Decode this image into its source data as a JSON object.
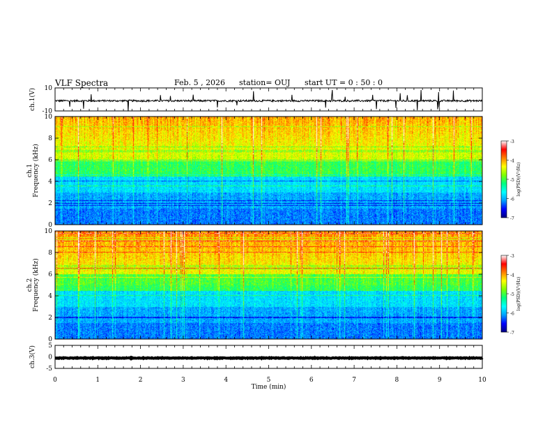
{
  "header": {
    "title": "VLF Spectra",
    "date": "Feb. 5 , 2026",
    "station": "station= OUJ",
    "start": "start  UT =   0 : 50 : 0"
  },
  "chart_data": {
    "type": "heatmap",
    "xlabel": "Time (min)",
    "xlim": [
      0,
      10
    ],
    "xticks": [
      "0",
      "1",
      "2",
      "3",
      "4",
      "5",
      "6",
      "7",
      "8",
      "9",
      "10"
    ],
    "panels": [
      {
        "id": "ch1-waveform",
        "kind": "line",
        "ylabel": "ch.1(V)",
        "ylim": [
          -10,
          10
        ],
        "yticks": [
          "10",
          "-10"
        ],
        "baseline": -1.2,
        "color": "#000000"
      },
      {
        "id": "ch1-spectrogram",
        "kind": "spectrogram",
        "ylabel": "ch.1\nFrequency (kHz)",
        "ylim": [
          0,
          10
        ],
        "yticks": [
          "0",
          "2",
          "4",
          "6",
          "8",
          "10"
        ]
      },
      {
        "id": "ch2-spectrogram",
        "kind": "spectrogram",
        "ylabel": "ch.2\nFrequency (kHz)",
        "ylim": [
          0,
          10
        ],
        "yticks": [
          "0",
          "2",
          "4",
          "6",
          "8",
          "10"
        ]
      },
      {
        "id": "ch3-waveform",
        "kind": "line",
        "ylabel": "ch.3(V)",
        "ylim": [
          -5,
          5
        ],
        "yticks": [
          "5",
          "0",
          "-5"
        ],
        "baseline": -0.5,
        "color": "#000000"
      }
    ],
    "colorbar": {
      "label": "log(PSD)(V²/Hz)",
      "range": [
        -7,
        -3
      ],
      "ticks": [
        "-3",
        "-4",
        "-5",
        "-6",
        "-7"
      ],
      "colormap": [
        "#000080",
        "#0000ff",
        "#00a0ff",
        "#00ffff",
        "#00ff80",
        "#80ff00",
        "#ffff00",
        "#ff8000",
        "#ff0000",
        "#ffffff"
      ]
    }
  }
}
